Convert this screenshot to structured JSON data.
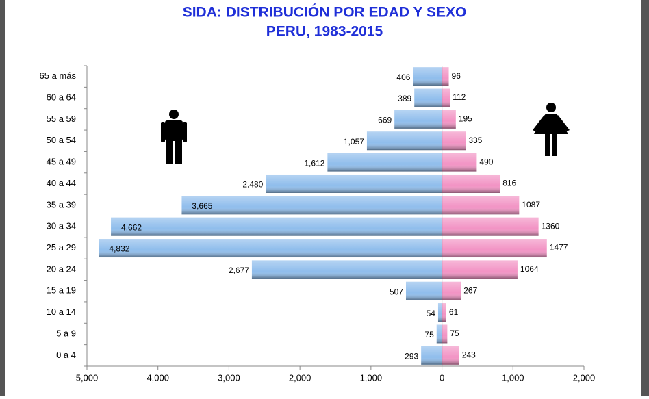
{
  "chart_data": {
    "type": "pyramid",
    "title": [
      "SIDA: DISTRIBUCIÓN POR EDAD Y SEXO",
      "PERU, 1983-2015"
    ],
    "categories": [
      "65 a más",
      "60 a 64",
      "55 a 59",
      "50 a 54",
      "45 a 49",
      "40 a 44",
      "35 a 39",
      "30 a 34",
      "25 a 29",
      "20 a 24",
      "15 a 19",
      "10 a 14",
      "5 a 9",
      "0 a 4"
    ],
    "series": [
      {
        "color": "#8fbdec",
        "values": [
          -406,
          -389,
          -669,
          -1057,
          -1612,
          -2480,
          -3665,
          -4662,
          -4832,
          -2677,
          -507,
          -54,
          -75,
          -293
        ],
        "value_labels": [
          "406",
          "389",
          "669",
          "1,057",
          "1,612",
          "2,480",
          "3,665",
          "4,662",
          "4,832",
          "2,677",
          "507",
          "54",
          "75",
          "293"
        ]
      },
      {
        "color": "#f293c4",
        "values": [
          96,
          112,
          195,
          335,
          490,
          816,
          1087,
          1360,
          1477,
          1064,
          267,
          61,
          75,
          243
        ]
      }
    ],
    "xlim": [
      -5000,
      2000
    ],
    "xticks": [
      {
        "value": -5000,
        "label": "5,000"
      },
      {
        "value": -4000,
        "label": "4,000"
      },
      {
        "value": -3000,
        "label": "3,000"
      },
      {
        "value": -2000,
        "label": "2,000"
      },
      {
        "value": -1000,
        "label": "1,000"
      },
      0,
      {
        "value": 1000,
        "label": "1,000"
      },
      {
        "value": 2000,
        "label": "2,000"
      }
    ],
    "grid": false
  }
}
